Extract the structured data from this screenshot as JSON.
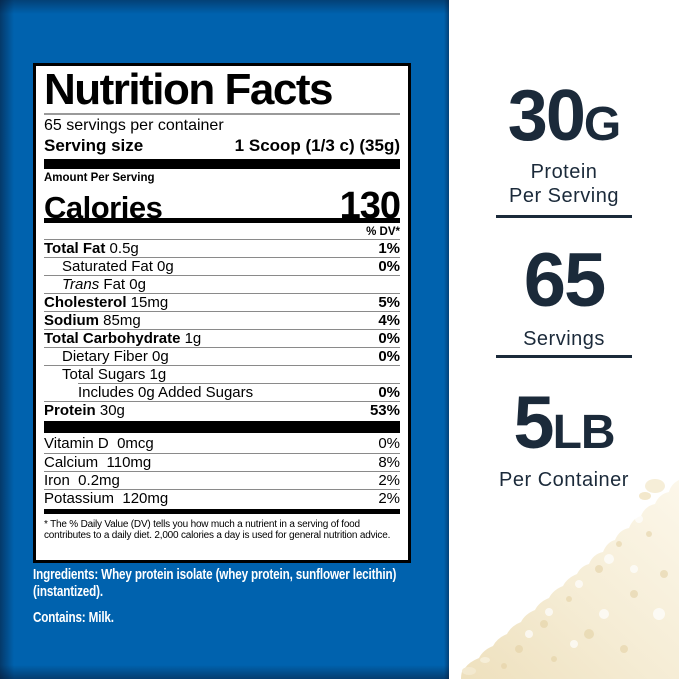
{
  "colors": {
    "background_blue": "#0062ae",
    "accent_navy": "#1b2a3a",
    "powder_cream": "#f4ead0",
    "label_border": "#000000"
  },
  "label": {
    "title": "Nutrition Facts",
    "servings_per_container": "65 servings per container",
    "serving_size_label": "Serving size",
    "serving_size_value": "1 Scoop (1/3 c) (35g)",
    "amount_per_serving": "Amount Per Serving",
    "calories_label": "Calories",
    "calories_value": "130",
    "dv_header": "% DV*",
    "nutrients": [
      {
        "name": "Total Fat",
        "amount": "0.5g",
        "dv": "1%",
        "name_bold": true,
        "dv_bold": true,
        "indent": 0
      },
      {
        "name": "Saturated Fat",
        "amount": "0g",
        "dv": "0%",
        "name_bold": false,
        "dv_bold": true,
        "indent": 1
      },
      {
        "name_italic": "Trans",
        "name": "Fat",
        "amount": "0g",
        "dv": "",
        "name_bold": false,
        "dv_bold": false,
        "indent": 1
      },
      {
        "name": "Cholesterol",
        "amount": "15mg",
        "dv": "5%",
        "name_bold": true,
        "dv_bold": true,
        "indent": 0
      },
      {
        "name": "Sodium",
        "amount": "85mg",
        "dv": "4%",
        "name_bold": true,
        "dv_bold": true,
        "indent": 0
      },
      {
        "name": "Total Carbohydrate",
        "amount": "1g",
        "dv": "0%",
        "name_bold": true,
        "dv_bold": true,
        "indent": 0
      },
      {
        "name": "Dietary Fiber",
        "amount": "0g",
        "dv": "0%",
        "name_bold": false,
        "dv_bold": true,
        "indent": 1
      },
      {
        "name": "Total Sugars",
        "amount": "1g",
        "dv": "",
        "name_bold": false,
        "dv_bold": false,
        "indent": 1
      },
      {
        "name": "Includes 0g Added Sugars",
        "amount": "",
        "dv": "0%",
        "name_bold": false,
        "dv_bold": true,
        "indent": 2
      },
      {
        "name": "Protein",
        "amount": "30g",
        "dv": "53%",
        "name_bold": true,
        "dv_bold": true,
        "indent": 0
      }
    ],
    "vitamins": [
      {
        "name": "Vitamin D",
        "amount": "0mcg",
        "dv": "0%"
      },
      {
        "name": "Calcium",
        "amount": "110mg",
        "dv": "8%"
      },
      {
        "name": "Iron",
        "amount": "0.2mg",
        "dv": "2%"
      },
      {
        "name": "Potassium",
        "amount": "120mg",
        "dv": "2%"
      }
    ],
    "footnote": "* The % Daily Value (DV) tells you how much a nutrient in a serving of food contributes to a daily diet. 2,000 calories a day is used for general nutrition advice."
  },
  "below_label": {
    "ingredients": "Ingredients: Whey protein isolate (whey protein, sunflower lecithin) (instantized).",
    "contains": "Contains: Milk."
  },
  "right_panel": {
    "stats": [
      {
        "value": "30",
        "unit": "G",
        "label_lines": [
          "Protein",
          "Per Serving"
        ]
      },
      {
        "value": "65",
        "unit": "",
        "label_lines": [
          "Servings"
        ]
      },
      {
        "value": "5",
        "unit": "LB",
        "label_lines": [
          "Per Container"
        ]
      }
    ]
  }
}
